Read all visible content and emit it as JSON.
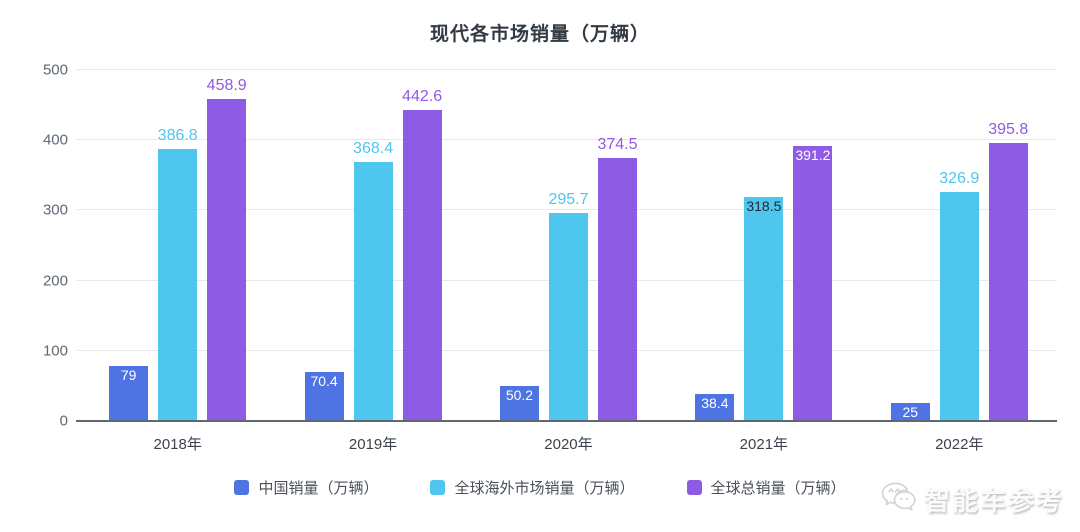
{
  "title": "现代各市场销量（万辆）",
  "watermark": {
    "icon": "wechat-icon",
    "text": "智能车参考"
  },
  "colors": {
    "china_blue": "#4E73E2",
    "overseas_cyan": "#4FC6EE",
    "global_purple": "#8E5BE4",
    "grid_line": "#e5e8ec",
    "axis_line": "#5f6974",
    "y_tick_label": "#5f6872",
    "category_label": "#3c434c",
    "title_text": "#333a42",
    "legend_text": "#4a5058"
  },
  "chart_data": {
    "type": "bar",
    "title": "现代各市场销量（万辆）",
    "categories": [
      "2018年",
      "2019年",
      "2020年",
      "2021年",
      "2022年"
    ],
    "series": [
      {
        "key": "china",
        "name": "中国销量（万辆）",
        "color": "#4E73E2",
        "values": [
          79,
          70.4,
          50.2,
          38.4,
          25
        ],
        "label_placement": [
          "inside",
          "inside",
          "inside",
          "inside",
          "inside"
        ],
        "label_colors": [
          "#ffffff",
          "#ffffff",
          "#ffffff",
          "#ffffff",
          "#ffffff"
        ]
      },
      {
        "key": "overseas",
        "name": "全球海外市场销量（万辆）",
        "color": "#4FC6EE",
        "values": [
          386.8,
          368.4,
          295.7,
          318.5,
          326.9
        ],
        "label_placement": [
          "above",
          "above",
          "above",
          "inside",
          "above"
        ],
        "label_colors": [
          "#4FC6EE",
          "#4FC6EE",
          "#4FC6EE",
          "#222833",
          "#4FC6EE"
        ]
      },
      {
        "key": "global",
        "name": "全球总销量（万辆）",
        "color": "#8E5BE4",
        "values": [
          458.9,
          442.6,
          374.5,
          391.2,
          395.8
        ],
        "label_placement": [
          "above",
          "above",
          "above",
          "inside",
          "above"
        ],
        "label_colors": [
          "#8E5BE4",
          "#8E5BE4",
          "#8E5BE4",
          "#ffffff",
          "#8E5BE4"
        ]
      }
    ],
    "ylim": [
      0,
      500
    ],
    "y_ticks": [
      0,
      100,
      200,
      300,
      400,
      500
    ],
    "grid": "horizontal",
    "legend_position": "bottom",
    "legend": [
      "中国销量（万辆）",
      "全球海外市场销量（万辆）",
      "全球总销量（万辆）"
    ]
  }
}
